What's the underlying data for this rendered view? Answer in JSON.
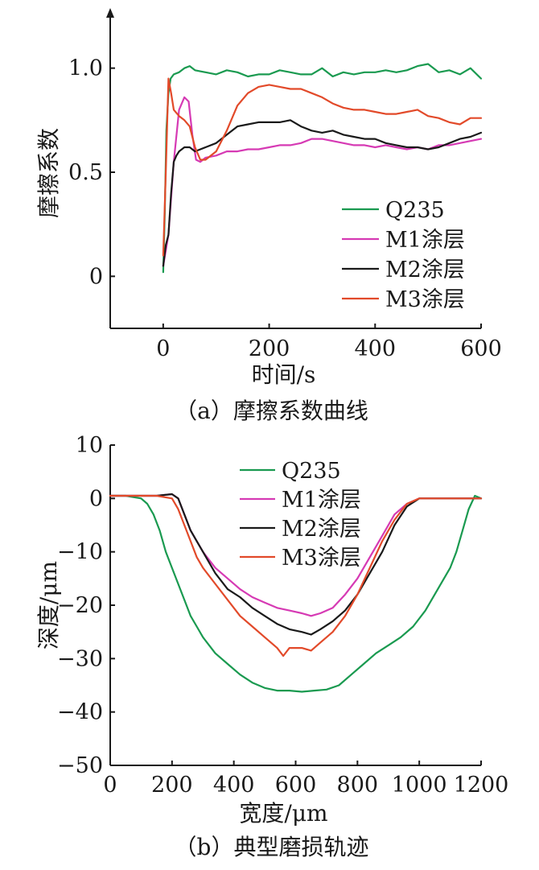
{
  "chart_data": [
    {
      "type": "line",
      "caption": "（a）摩擦系数曲线",
      "xlabel": "时间/s",
      "ylabel": "摩擦系数",
      "xlim": [
        -100,
        600
      ],
      "ylim": [
        -0.25,
        1.25
      ],
      "xticks": [
        0,
        200,
        400,
        600
      ],
      "xtick_labels": [
        "0",
        "200",
        "400",
        "600"
      ],
      "yticks": [
        0,
        0.5,
        1.0
      ],
      "ytick_labels": [
        "0",
        "0.5",
        "1.0"
      ],
      "axis_arrows": true,
      "grid": false,
      "legend": "bottom-right",
      "series": [
        {
          "name": "Q235",
          "color": "#1a9a50",
          "x": [
            0,
            3,
            6,
            10,
            14,
            20,
            30,
            40,
            50,
            60,
            80,
            100,
            120,
            140,
            160,
            180,
            200,
            220,
            240,
            260,
            280,
            300,
            320,
            340,
            360,
            380,
            400,
            420,
            440,
            460,
            480,
            500,
            520,
            540,
            560,
            580,
            600
          ],
          "y": [
            0.02,
            0.3,
            0.7,
            0.88,
            0.95,
            0.97,
            0.98,
            1.0,
            1.01,
            0.99,
            0.98,
            0.97,
            0.99,
            0.98,
            0.96,
            0.97,
            0.97,
            0.99,
            0.98,
            0.97,
            0.97,
            1.0,
            0.96,
            0.98,
            0.97,
            0.98,
            0.98,
            0.99,
            0.98,
            0.99,
            1.01,
            1.02,
            0.98,
            0.99,
            0.97,
            1.0,
            0.95
          ]
        },
        {
          "name": "M1涂层",
          "color": "#d63ab4",
          "x": [
            0,
            10,
            20,
            30,
            40,
            48,
            55,
            62,
            70,
            80,
            100,
            120,
            140,
            160,
            180,
            200,
            220,
            240,
            260,
            280,
            300,
            320,
            340,
            360,
            380,
            400,
            420,
            440,
            460,
            480,
            500,
            520,
            540,
            560,
            580,
            600
          ],
          "y": [
            0.05,
            0.2,
            0.55,
            0.8,
            0.86,
            0.84,
            0.68,
            0.56,
            0.55,
            0.57,
            0.58,
            0.6,
            0.6,
            0.61,
            0.61,
            0.62,
            0.63,
            0.63,
            0.64,
            0.66,
            0.66,
            0.65,
            0.64,
            0.63,
            0.63,
            0.62,
            0.63,
            0.62,
            0.61,
            0.62,
            0.61,
            0.63,
            0.63,
            0.64,
            0.65,
            0.66
          ]
        },
        {
          "name": "M2涂层",
          "color": "#1a1a1a",
          "x": [
            0,
            5,
            10,
            15,
            20,
            25,
            30,
            40,
            50,
            60,
            80,
            100,
            120,
            140,
            160,
            180,
            200,
            220,
            240,
            260,
            280,
            300,
            320,
            340,
            360,
            380,
            400,
            420,
            440,
            460,
            480,
            500,
            520,
            540,
            560,
            580,
            600
          ],
          "y": [
            0.05,
            0.15,
            0.2,
            0.4,
            0.55,
            0.58,
            0.6,
            0.62,
            0.62,
            0.6,
            0.62,
            0.64,
            0.68,
            0.72,
            0.73,
            0.74,
            0.74,
            0.74,
            0.75,
            0.72,
            0.7,
            0.69,
            0.7,
            0.68,
            0.67,
            0.66,
            0.66,
            0.64,
            0.63,
            0.62,
            0.62,
            0.61,
            0.62,
            0.64,
            0.66,
            0.67,
            0.69
          ]
        },
        {
          "name": "M3涂层",
          "color": "#e24a2a",
          "x": [
            0,
            5,
            10,
            15,
            20,
            30,
            40,
            50,
            60,
            70,
            80,
            100,
            120,
            140,
            160,
            180,
            200,
            220,
            240,
            260,
            280,
            300,
            320,
            340,
            360,
            380,
            400,
            420,
            440,
            460,
            480,
            500,
            520,
            540,
            560,
            580,
            600
          ],
          "y": [
            0.1,
            0.5,
            0.95,
            0.88,
            0.8,
            0.77,
            0.75,
            0.72,
            0.62,
            0.56,
            0.56,
            0.6,
            0.7,
            0.82,
            0.88,
            0.91,
            0.92,
            0.91,
            0.9,
            0.9,
            0.88,
            0.86,
            0.83,
            0.81,
            0.8,
            0.8,
            0.79,
            0.78,
            0.78,
            0.79,
            0.8,
            0.77,
            0.76,
            0.74,
            0.73,
            0.76,
            0.76
          ]
        }
      ]
    },
    {
      "type": "line",
      "caption": "（b）典型磨损轨迹",
      "xlabel": "宽度/μm",
      "ylabel": "深度/μm",
      "xlim": [
        0,
        1200
      ],
      "ylim": [
        -50,
        10
      ],
      "xticks": [
        0,
        200,
        400,
        600,
        800,
        1000,
        1200
      ],
      "xtick_labels": [
        "0",
        "200",
        "400",
        "600",
        "800",
        "1000",
        "1200"
      ],
      "yticks": [
        10,
        0,
        -10,
        -20,
        -30,
        -40,
        -50
      ],
      "ytick_labels": [
        "10",
        "0",
        "−10",
        "−20",
        "−30",
        "−40",
        "−50"
      ],
      "grid": false,
      "legend": "top-right",
      "series": [
        {
          "name": "Q235",
          "color": "#1a9a50",
          "x": [
            0,
            50,
            100,
            120,
            140,
            160,
            180,
            200,
            220,
            240,
            260,
            280,
            300,
            340,
            380,
            420,
            460,
            500,
            540,
            580,
            620,
            660,
            700,
            740,
            780,
            820,
            860,
            900,
            940,
            980,
            1020,
            1060,
            1100,
            1120,
            1140,
            1160,
            1180,
            1200
          ],
          "y": [
            0.5,
            0.5,
            0,
            -1,
            -3,
            -6,
            -10,
            -13,
            -16,
            -19,
            -22,
            -24,
            -26,
            -29,
            -31,
            -33,
            -34.5,
            -35.5,
            -36,
            -36,
            -36.2,
            -36,
            -35.8,
            -35,
            -33,
            -31,
            -29,
            -27.5,
            -26,
            -24,
            -21,
            -17,
            -13,
            -10,
            -6,
            -2,
            0.5,
            0
          ]
        },
        {
          "name": "M1涂层",
          "color": "#d63ab4",
          "x": [
            0,
            50,
            100,
            150,
            200,
            220,
            240,
            260,
            280,
            300,
            340,
            380,
            420,
            460,
            500,
            540,
            580,
            620,
            650,
            680,
            720,
            760,
            800,
            840,
            880,
            920,
            960,
            1000,
            1040,
            1080,
            1120,
            1160,
            1200
          ],
          "y": [
            0.5,
            0.5,
            0.5,
            0.5,
            0.8,
            0,
            -3,
            -6,
            -8,
            -10,
            -13,
            -15,
            -17,
            -18.5,
            -19.5,
            -20.5,
            -21,
            -21.5,
            -22,
            -21.5,
            -20.5,
            -18,
            -15,
            -11,
            -7,
            -3,
            -1,
            0,
            0,
            0,
            0,
            0,
            0
          ]
        },
        {
          "name": "M2涂层",
          "color": "#1a1a1a",
          "x": [
            0,
            50,
            100,
            150,
            200,
            220,
            240,
            260,
            280,
            300,
            340,
            380,
            420,
            460,
            500,
            540,
            580,
            620,
            650,
            680,
            720,
            760,
            800,
            840,
            880,
            920,
            960,
            1000,
            1040,
            1080,
            1120,
            1160,
            1200
          ],
          "y": [
            0.5,
            0.5,
            0.5,
            0.5,
            0.8,
            0,
            -3,
            -6,
            -8,
            -10,
            -14,
            -17,
            -18.5,
            -20.5,
            -22,
            -23.5,
            -24.5,
            -25,
            -25.5,
            -24.5,
            -23,
            -21,
            -18,
            -14,
            -10,
            -5,
            -1.5,
            0,
            0,
            0,
            0,
            0,
            0
          ]
        },
        {
          "name": "M3涂层",
          "color": "#e24a2a",
          "x": [
            0,
            50,
            100,
            150,
            200,
            220,
            240,
            260,
            280,
            300,
            340,
            380,
            420,
            460,
            500,
            540,
            560,
            580,
            620,
            650,
            680,
            720,
            760,
            800,
            840,
            880,
            920,
            960,
            1000,
            1040,
            1080,
            1120,
            1160,
            1200
          ],
          "y": [
            0.5,
            0.5,
            0.5,
            0.5,
            0,
            -2,
            -5,
            -8,
            -11,
            -13,
            -16,
            -19,
            -22,
            -24,
            -26,
            -28,
            -29.5,
            -28,
            -28,
            -28.5,
            -27,
            -25,
            -22,
            -18,
            -13,
            -8,
            -4,
            -1,
            0,
            0,
            0,
            0,
            0,
            0
          ]
        }
      ]
    }
  ]
}
